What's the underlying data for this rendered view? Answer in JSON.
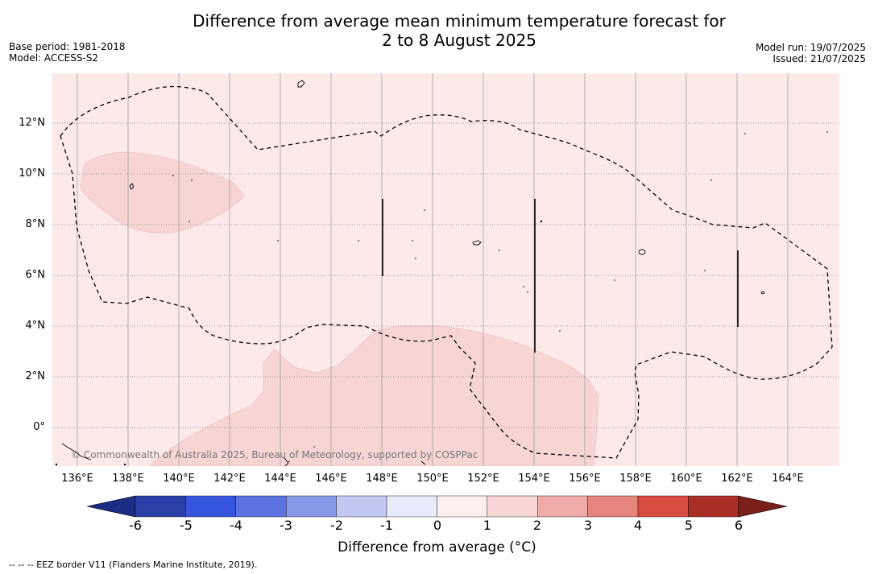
{
  "header": {
    "title_line1": "Difference from average mean minimum temperature forecast for",
    "title_line2": "2 to 8 August 2025",
    "base_period": "Base period: 1981-2018",
    "model": "Model: ACCESS-S2",
    "model_run": "Model run: 19/07/2025",
    "issued": "Issued: 21/07/2025"
  },
  "map": {
    "latitude_labels": [
      "12°N",
      "10°N",
      "8°N",
      "6°N",
      "4°N",
      "2°N",
      "0°"
    ],
    "longitude_labels": [
      "136°E",
      "138°E",
      "140°E",
      "142°E",
      "144°E",
      "146°E",
      "148°E",
      "150°E",
      "152°E",
      "154°E",
      "156°E",
      "158°E",
      "160°E",
      "162°E",
      "164°E"
    ],
    "copyright": "© Commonwealth of Australia 2025, Bureau of Meteorology, supported by COSPPac",
    "background_color": "#fce9e8",
    "anomaly_color": "#f6d5d3"
  },
  "colorbar": {
    "ticks": [
      "-6",
      "-5",
      "-4",
      "-3",
      "-2",
      "-1",
      "0",
      "1",
      "2",
      "3",
      "4",
      "5",
      "6"
    ],
    "colors": [
      "#1c2d85",
      "#2a3fa8",
      "#3654dc",
      "#5a73e0",
      "#8898e8",
      "#c2c8f2",
      "#e9ebfa",
      "#fcefee",
      "#f6d5d3",
      "#eeaba7",
      "#e6847e",
      "#d94c42",
      "#a92e26",
      "#7a1f1a"
    ],
    "label": "Difference from average (°C)"
  },
  "footnote": "--  --  -- EEZ border V11 (Flanders Marine Institute, 2019)."
}
